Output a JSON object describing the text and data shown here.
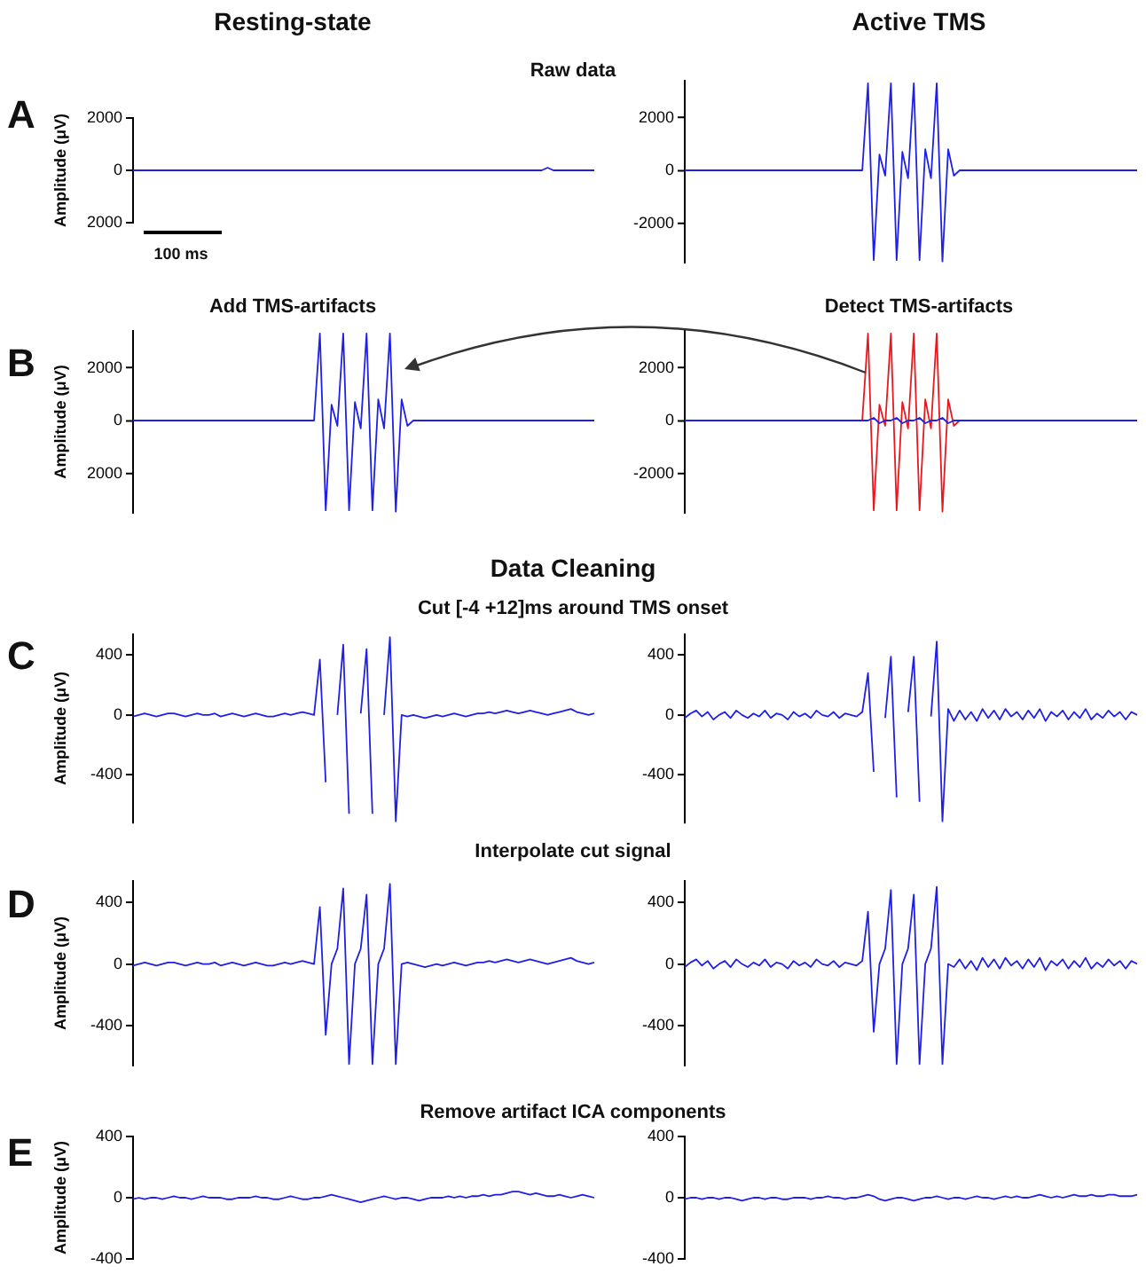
{
  "chart_data": [
    {
      "type": "line",
      "title": "Resting-state",
      "ylabel": "Amplitude (μV)",
      "annotations": [
        "A",
        "Raw data",
        "100 ms"
      ],
      "tick_labels": "y",
      "ylim": [
        -2000,
        2000
      ],
      "yticks": [
        2000,
        0,
        {
          "value": -2000,
          "label": "2000"
        }
      ],
      "categories": [
        null,
        null,
        null,
        null,
        null,
        null,
        null,
        null,
        null,
        null,
        null,
        null,
        null,
        null,
        null,
        null,
        null,
        null,
        null,
        null,
        null,
        null,
        null,
        null,
        null,
        null,
        null,
        null,
        null,
        null,
        null,
        null,
        null,
        null,
        null,
        null,
        null,
        null,
        null,
        null,
        null,
        null,
        null,
        null,
        null,
        null,
        null,
        null,
        null,
        null,
        null,
        null,
        null,
        null,
        null,
        null,
        null,
        null,
        null,
        null,
        null,
        null,
        null,
        null,
        null,
        null,
        null,
        null,
        null,
        null,
        null,
        null,
        null,
        null,
        null,
        null,
        null,
        null,
        null,
        null
      ],
      "series": [
        {
          "color": "#1f1fe6",
          "values": [
            0,
            0,
            0,
            0,
            0,
            0,
            0,
            0,
            0,
            0,
            0,
            0,
            0,
            0,
            0,
            0,
            0,
            0,
            0,
            0,
            0,
            0,
            0,
            0,
            0,
            0,
            0,
            0,
            0,
            0,
            0,
            0,
            0,
            0,
            0,
            0,
            0,
            0,
            0,
            0,
            0,
            0,
            0,
            0,
            0,
            0,
            0,
            0,
            0,
            0,
            0,
            0,
            0,
            0,
            0,
            0,
            0,
            0,
            0,
            0,
            0,
            0,
            0,
            0,
            0,
            0,
            0,
            0,
            0,
            0,
            0,
            100,
            0,
            0,
            0,
            0,
            0,
            0,
            0,
            0
          ]
        }
      ]
    },
    {
      "type": "line",
      "title": "Active TMS",
      "tick_labels": "y",
      "ylim": [
        -3500,
        3400
      ],
      "yticks": [
        2000,
        0,
        -2000
      ],
      "categories": [
        null,
        null,
        null,
        null,
        null,
        null,
        null,
        null,
        null,
        null,
        null,
        null,
        null,
        null,
        null,
        null,
        null,
        null,
        null,
        null,
        null,
        null,
        null,
        null,
        null,
        null,
        null,
        null,
        null,
        null,
        null,
        null,
        null,
        null,
        null,
        null,
        null,
        null,
        null,
        null,
        null,
        null,
        null,
        null,
        null,
        null,
        null,
        null,
        null,
        null,
        null,
        null,
        null,
        null,
        null,
        null,
        null,
        null,
        null,
        null,
        null,
        null,
        null,
        null,
        null,
        null,
        null,
        null,
        null,
        null,
        null,
        null,
        null,
        null,
        null,
        null,
        null,
        null,
        null,
        null
      ],
      "series": [
        {
          "color": "#1f1fe6",
          "values": [
            0,
            0,
            0,
            0,
            0,
            0,
            0,
            0,
            0,
            0,
            0,
            0,
            0,
            0,
            0,
            0,
            0,
            0,
            0,
            0,
            0,
            0,
            0,
            0,
            0,
            0,
            0,
            0,
            0,
            0,
            0,
            0,
            3300,
            -3400,
            600,
            -200,
            3300,
            -3400,
            700,
            -300,
            3300,
            -3400,
            800,
            -300,
            3300,
            -3450,
            800,
            -200,
            0,
            0,
            0,
            0,
            0,
            0,
            0,
            0,
            0,
            0,
            0,
            0,
            0,
            0,
            0,
            0,
            0,
            0,
            0,
            0,
            0,
            0,
            0,
            0,
            0,
            0,
            0,
            0,
            0,
            0,
            0,
            0
          ]
        }
      ]
    },
    {
      "type": "line",
      "title": "Add TMS-artifacts",
      "ylabel": "Amplitude (μV)",
      "annotations": [
        "B"
      ],
      "tick_labels": "y",
      "ylim": [
        -3500,
        3400
      ],
      "yticks": [
        2000,
        0,
        {
          "value": -2000,
          "label": "2000"
        }
      ],
      "categories": [
        null,
        null,
        null,
        null,
        null,
        null,
        null,
        null,
        null,
        null,
        null,
        null,
        null,
        null,
        null,
        null,
        null,
        null,
        null,
        null,
        null,
        null,
        null,
        null,
        null,
        null,
        null,
        null,
        null,
        null,
        null,
        null,
        null,
        null,
        null,
        null,
        null,
        null,
        null,
        null,
        null,
        null,
        null,
        null,
        null,
        null,
        null,
        null,
        null,
        null,
        null,
        null,
        null,
        null,
        null,
        null,
        null,
        null,
        null,
        null,
        null,
        null,
        null,
        null,
        null,
        null,
        null,
        null,
        null,
        null,
        null,
        null,
        null,
        null,
        null,
        null,
        null,
        null,
        null,
        null
      ],
      "series": [
        {
          "color": "#1f1fe6",
          "values": [
            0,
            0,
            0,
            0,
            0,
            0,
            0,
            0,
            0,
            0,
            0,
            0,
            0,
            0,
            0,
            0,
            0,
            0,
            0,
            0,
            0,
            0,
            0,
            0,
            0,
            0,
            0,
            0,
            0,
            0,
            0,
            0,
            3300,
            -3400,
            600,
            -200,
            3300,
            -3400,
            700,
            -300,
            3300,
            -3400,
            800,
            -300,
            3300,
            -3450,
            800,
            -200,
            0,
            0,
            0,
            0,
            0,
            0,
            0,
            0,
            0,
            0,
            0,
            0,
            0,
            0,
            0,
            0,
            0,
            0,
            0,
            0,
            0,
            0,
            0,
            0,
            0,
            0,
            0,
            0,
            0,
            0,
            0,
            0
          ]
        }
      ]
    },
    {
      "type": "line",
      "title": "Detect TMS-artifacts",
      "tick_labels": "y",
      "ylim": [
        -3500,
        3400
      ],
      "yticks": [
        2000,
        0,
        -2000
      ],
      "categories": [
        null,
        null,
        null,
        null,
        null,
        null,
        null,
        null,
        null,
        null,
        null,
        null,
        null,
        null,
        null,
        null,
        null,
        null,
        null,
        null,
        null,
        null,
        null,
        null,
        null,
        null,
        null,
        null,
        null,
        null,
        null,
        null,
        null,
        null,
        null,
        null,
        null,
        null,
        null,
        null,
        null,
        null,
        null,
        null,
        null,
        null,
        null,
        null,
        null,
        null,
        null,
        null,
        null,
        null,
        null,
        null,
        null,
        null,
        null,
        null,
        null,
        null,
        null,
        null,
        null,
        null,
        null,
        null,
        null,
        null,
        null,
        null,
        null,
        null,
        null,
        null,
        null,
        null,
        null,
        null
      ],
      "series": [
        {
          "color": "#1f1fe6",
          "values": [
            0,
            0,
            0,
            0,
            0,
            0,
            0,
            0,
            0,
            0,
            0,
            0,
            0,
            0,
            0,
            0,
            0,
            0,
            0,
            0,
            0,
            0,
            0,
            0,
            0,
            0,
            0,
            0,
            0,
            0,
            0,
            0,
            0,
            100,
            -100,
            0,
            0,
            100,
            -100,
            0,
            0,
            100,
            -100,
            0,
            0,
            100,
            -100,
            0,
            0,
            0,
            0,
            0,
            0,
            0,
            0,
            0,
            0,
            0,
            0,
            0,
            0,
            0,
            0,
            0,
            0,
            0,
            0,
            0,
            0,
            0,
            0,
            0,
            0,
            0,
            0,
            0,
            0,
            0,
            0,
            0
          ]
        },
        {
          "color": "#e8191e",
          "values": [
            null,
            null,
            null,
            null,
            null,
            null,
            null,
            null,
            null,
            null,
            null,
            null,
            null,
            null,
            null,
            null,
            null,
            null,
            null,
            null,
            null,
            null,
            null,
            null,
            null,
            null,
            null,
            null,
            null,
            null,
            null,
            0,
            3300,
            -3400,
            600,
            -200,
            3300,
            -3400,
            700,
            -300,
            3300,
            -3400,
            800,
            -300,
            3300,
            -3450,
            800,
            -200,
            0,
            null,
            null,
            null,
            null,
            null,
            null,
            null,
            null,
            null,
            null,
            null,
            null,
            null,
            null,
            null,
            null,
            null,
            null,
            null,
            null,
            null,
            null,
            null,
            null,
            null,
            null,
            null,
            null,
            null,
            null,
            null
          ]
        }
      ]
    },
    {
      "type": "line",
      "ylabel": "Amplitude (μV)",
      "annotations": [
        "C",
        "Data Cleaning",
        "Cut [-4 +12]ms around TMS onset"
      ],
      "tick_labels": "y",
      "ylim": [
        -720,
        540
      ],
      "yticks": [
        400,
        0,
        -400
      ],
      "categories": [
        null,
        null,
        null,
        null,
        null,
        null,
        null,
        null,
        null,
        null,
        null,
        null,
        null,
        null,
        null,
        null,
        null,
        null,
        null,
        null,
        null,
        null,
        null,
        null,
        null,
        null,
        null,
        null,
        null,
        null,
        null,
        null,
        null,
        null,
        null,
        null,
        null,
        null,
        null,
        null,
        null,
        null,
        null,
        null,
        null,
        null,
        null,
        null,
        null,
        null,
        null,
        null,
        null,
        null,
        null,
        null,
        null,
        null,
        null,
        null,
        null,
        null,
        null,
        null,
        null,
        null,
        null,
        null,
        null,
        null,
        null,
        null,
        null,
        null,
        null,
        null,
        null,
        null,
        null,
        null
      ],
      "series": [
        {
          "color": "#1f1fe6",
          "values": [
            -10,
            0,
            10,
            0,
            -10,
            0,
            10,
            10,
            0,
            -10,
            0,
            10,
            0,
            0,
            10,
            -10,
            0,
            10,
            0,
            -10,
            0,
            10,
            0,
            -10,
            -10,
            0,
            10,
            0,
            10,
            20,
            10,
            0,
            370,
            -450,
            null,
            0,
            470,
            -660,
            null,
            10,
            440,
            -660,
            null,
            0,
            520,
            -710,
            0,
            -10,
            0,
            -10,
            -20,
            -10,
            0,
            -10,
            0,
            10,
            0,
            -10,
            0,
            10,
            10,
            20,
            10,
            20,
            30,
            20,
            10,
            20,
            30,
            20,
            10,
            0,
            10,
            20,
            30,
            40,
            20,
            10,
            0,
            10
          ]
        }
      ]
    },
    {
      "type": "line",
      "tick_labels": "y",
      "ylim": [
        -720,
        540
      ],
      "yticks": [
        400,
        0,
        -400
      ],
      "categories": [
        null,
        null,
        null,
        null,
        null,
        null,
        null,
        null,
        null,
        null,
        null,
        null,
        null,
        null,
        null,
        null,
        null,
        null,
        null,
        null,
        null,
        null,
        null,
        null,
        null,
        null,
        null,
        null,
        null,
        null,
        null,
        null,
        null,
        null,
        null,
        null,
        null,
        null,
        null,
        null,
        null,
        null,
        null,
        null,
        null,
        null,
        null,
        null,
        null,
        null,
        null,
        null,
        null,
        null,
        null,
        null,
        null,
        null,
        null,
        null,
        null,
        null,
        null,
        null,
        null,
        null,
        null,
        null,
        null,
        null,
        null,
        null,
        null,
        null,
        null,
        null,
        null,
        null,
        null,
        null
      ],
      "series": [
        {
          "color": "#1f1fe6",
          "values": [
            -20,
            10,
            30,
            -10,
            20,
            -30,
            0,
            20,
            -20,
            30,
            0,
            -20,
            10,
            -10,
            30,
            -20,
            10,
            0,
            -30,
            20,
            -10,
            10,
            -20,
            30,
            0,
            -10,
            20,
            -20,
            10,
            0,
            -10,
            20,
            280,
            -380,
            null,
            -20,
            390,
            -550,
            null,
            20,
            390,
            -580,
            null,
            -10,
            490,
            -710,
            40,
            -40,
            30,
            -30,
            20,
            -40,
            40,
            -20,
            30,
            -30,
            40,
            -10,
            20,
            -30,
            30,
            -20,
            40,
            -40,
            20,
            -10,
            30,
            -30,
            20,
            -20,
            40,
            -30,
            10,
            -20,
            30,
            -10,
            20,
            -30,
            20,
            0
          ]
        }
      ]
    },
    {
      "type": "line",
      "ylabel": "Amplitude (μV)",
      "annotations": [
        "D",
        "Interpolate cut signal"
      ],
      "tick_labels": "y",
      "ylim": [
        -660,
        540
      ],
      "yticks": [
        400,
        0,
        -400
      ],
      "categories": [
        null,
        null,
        null,
        null,
        null,
        null,
        null,
        null,
        null,
        null,
        null,
        null,
        null,
        null,
        null,
        null,
        null,
        null,
        null,
        null,
        null,
        null,
        null,
        null,
        null,
        null,
        null,
        null,
        null,
        null,
        null,
        null,
        null,
        null,
        null,
        null,
        null,
        null,
        null,
        null,
        null,
        null,
        null,
        null,
        null,
        null,
        null,
        null,
        null,
        null,
        null,
        null,
        null,
        null,
        null,
        null,
        null,
        null,
        null,
        null,
        null,
        null,
        null,
        null,
        null,
        null,
        null,
        null,
        null,
        null,
        null,
        null,
        null,
        null,
        null,
        null,
        null,
        null,
        null,
        null
      ],
      "series": [
        {
          "color": "#1f1fe6",
          "values": [
            -10,
            0,
            10,
            0,
            -10,
            0,
            10,
            10,
            0,
            -10,
            0,
            10,
            0,
            0,
            10,
            -10,
            0,
            10,
            0,
            -10,
            0,
            10,
            0,
            -10,
            -10,
            0,
            10,
            0,
            10,
            20,
            10,
            0,
            370,
            -460,
            0,
            100,
            490,
            -650,
            0,
            100,
            450,
            -650,
            0,
            100,
            520,
            -650,
            0,
            10,
            0,
            -10,
            -20,
            -10,
            0,
            -10,
            0,
            10,
            0,
            -10,
            0,
            10,
            10,
            20,
            10,
            20,
            30,
            20,
            10,
            20,
            30,
            20,
            10,
            0,
            10,
            20,
            30,
            40,
            20,
            10,
            0,
            10
          ]
        }
      ]
    },
    {
      "type": "line",
      "tick_labels": "y",
      "ylim": [
        -660,
        540
      ],
      "yticks": [
        400,
        0,
        -400
      ],
      "categories": [
        null,
        null,
        null,
        null,
        null,
        null,
        null,
        null,
        null,
        null,
        null,
        null,
        null,
        null,
        null,
        null,
        null,
        null,
        null,
        null,
        null,
        null,
        null,
        null,
        null,
        null,
        null,
        null,
        null,
        null,
        null,
        null,
        null,
        null,
        null,
        null,
        null,
        null,
        null,
        null,
        null,
        null,
        null,
        null,
        null,
        null,
        null,
        null,
        null,
        null,
        null,
        null,
        null,
        null,
        null,
        null,
        null,
        null,
        null,
        null,
        null,
        null,
        null,
        null,
        null,
        null,
        null,
        null,
        null,
        null,
        null,
        null,
        null,
        null,
        null,
        null,
        null,
        null,
        null,
        null
      ],
      "series": [
        {
          "color": "#1f1fe6",
          "values": [
            -20,
            10,
            30,
            -10,
            20,
            -30,
            0,
            20,
            -20,
            30,
            0,
            -20,
            10,
            -10,
            30,
            -20,
            10,
            0,
            -30,
            20,
            -10,
            10,
            -20,
            30,
            0,
            -10,
            20,
            -20,
            10,
            0,
            -10,
            20,
            340,
            -440,
            0,
            100,
            480,
            -650,
            0,
            100,
            450,
            -650,
            0,
            100,
            500,
            -650,
            0,
            -20,
            30,
            -30,
            20,
            -40,
            40,
            -20,
            30,
            -30,
            40,
            -10,
            20,
            -30,
            30,
            -20,
            40,
            -40,
            20,
            -10,
            30,
            -30,
            20,
            -20,
            40,
            -30,
            10,
            -20,
            30,
            -10,
            20,
            -30,
            20,
            0
          ]
        }
      ]
    },
    {
      "type": "line",
      "ylabel": "Amplitude (μV)",
      "annotations": [
        "E",
        "Remove artifact ICA components"
      ],
      "tick_labels": "y",
      "ylim": [
        -400,
        400
      ],
      "yticks": [
        400,
        0,
        -400
      ],
      "categories": [
        null,
        null,
        null,
        null,
        null,
        null,
        null,
        null,
        null,
        null,
        null,
        null,
        null,
        null,
        null,
        null,
        null,
        null,
        null,
        null,
        null,
        null,
        null,
        null,
        null,
        null,
        null,
        null,
        null,
        null,
        null,
        null,
        null,
        null,
        null,
        null,
        null,
        null,
        null,
        null,
        null,
        null,
        null,
        null,
        null,
        null,
        null,
        null,
        null,
        null,
        null,
        null,
        null,
        null,
        null,
        null,
        null,
        null,
        null,
        null,
        null,
        null,
        null,
        null,
        null,
        null,
        null,
        null,
        null,
        null,
        null,
        null,
        null,
        null,
        null,
        null,
        null,
        null,
        null,
        null
      ],
      "series": [
        {
          "color": "#1f1fe6",
          "values": [
            -10,
            0,
            -10,
            0,
            0,
            -10,
            0,
            10,
            0,
            0,
            -10,
            0,
            10,
            0,
            0,
            0,
            -10,
            -10,
            0,
            0,
            0,
            10,
            0,
            0,
            -10,
            -10,
            0,
            10,
            0,
            -10,
            -10,
            0,
            0,
            10,
            20,
            10,
            0,
            -10,
            -20,
            -30,
            -20,
            -10,
            0,
            10,
            0,
            -10,
            0,
            0,
            -10,
            -20,
            -10,
            0,
            0,
            0,
            10,
            0,
            10,
            0,
            10,
            10,
            20,
            10,
            20,
            20,
            30,
            40,
            40,
            30,
            20,
            30,
            20,
            10,
            10,
            20,
            10,
            0,
            10,
            20,
            10,
            0
          ]
        }
      ]
    },
    {
      "type": "line",
      "tick_labels": "y",
      "ylim": [
        -400,
        400
      ],
      "yticks": [
        400,
        0,
        -400
      ],
      "categories": [
        null,
        null,
        null,
        null,
        null,
        null,
        null,
        null,
        null,
        null,
        null,
        null,
        null,
        null,
        null,
        null,
        null,
        null,
        null,
        null,
        null,
        null,
        null,
        null,
        null,
        null,
        null,
        null,
        null,
        null,
        null,
        null,
        null,
        null,
        null,
        null,
        null,
        null,
        null,
        null,
        null,
        null,
        null,
        null,
        null,
        null,
        null,
        null,
        null,
        null,
        null,
        null,
        null,
        null,
        null,
        null,
        null,
        null,
        null,
        null,
        null,
        null,
        null,
        null,
        null,
        null,
        null,
        null,
        null,
        null,
        null,
        null,
        null,
        null,
        null,
        null,
        null,
        null,
        null,
        null
      ],
      "series": [
        {
          "color": "#1f1fe6",
          "values": [
            -10,
            0,
            0,
            -10,
            0,
            0,
            -10,
            0,
            0,
            -10,
            -20,
            -10,
            0,
            0,
            -10,
            0,
            0,
            -10,
            -10,
            0,
            0,
            0,
            -10,
            0,
            0,
            10,
            0,
            0,
            -10,
            0,
            0,
            10,
            20,
            10,
            -10,
            -20,
            -10,
            0,
            0,
            -10,
            -20,
            -10,
            0,
            0,
            10,
            0,
            -10,
            0,
            0,
            -10,
            0,
            10,
            0,
            0,
            -10,
            0,
            10,
            0,
            10,
            0,
            0,
            10,
            20,
            10,
            0,
            10,
            0,
            10,
            20,
            10,
            10,
            20,
            10,
            10,
            20,
            20,
            10,
            10,
            10,
            20
          ]
        }
      ]
    }
  ]
}
